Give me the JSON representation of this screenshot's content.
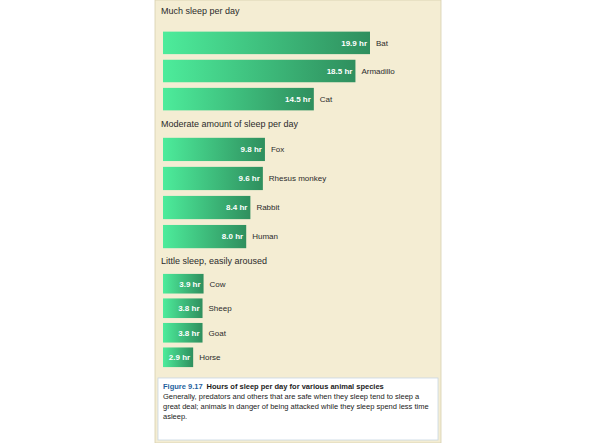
{
  "figure": {
    "label": "Figure 9.17",
    "title": "Hours of sleep per day for various animal species",
    "caption": "Generally, predators and others that are safe when they sleep tend to sleep a great deal; animals in danger of being attacked while they sleep spend less time asleep."
  },
  "chart_data": [
    {
      "type": "bar",
      "orientation": "horizontal",
      "title": "Much sleep per day",
      "categories": [
        "Bat",
        "Armadillo",
        "Cat"
      ],
      "values": [
        19.9,
        18.5,
        14.5
      ],
      "value_labels": [
        "19.9 hr",
        "18.5 hr",
        "14.5 hr"
      ],
      "data_labels": true,
      "tick_labels": false,
      "color": "#2f8f5e"
    },
    {
      "type": "bar",
      "orientation": "horizontal",
      "title": "Moderate amount of sleep per day",
      "categories": [
        "Fox",
        "Rhesus monkey",
        "Rabbit",
        "Human"
      ],
      "values": [
        9.8,
        9.6,
        8.4,
        8.0
      ],
      "value_labels": [
        "9.8 hr",
        "9.6 hr",
        "8.4 hr",
        "8.0 hr"
      ],
      "data_labels": true,
      "tick_labels": false,
      "color": "#2f8f5e"
    },
    {
      "type": "bar",
      "orientation": "horizontal",
      "title": "Little sleep, easily aroused",
      "categories": [
        "Cow",
        "Sheep",
        "Goat",
        "Horse"
      ],
      "values": [
        3.9,
        3.8,
        3.8,
        2.9
      ],
      "value_labels": [
        "3.9 hr",
        "3.8 hr",
        "3.8 hr",
        "2.9 hr"
      ],
      "data_labels": true,
      "tick_labels": false,
      "color": "#2f8f5e"
    }
  ]
}
